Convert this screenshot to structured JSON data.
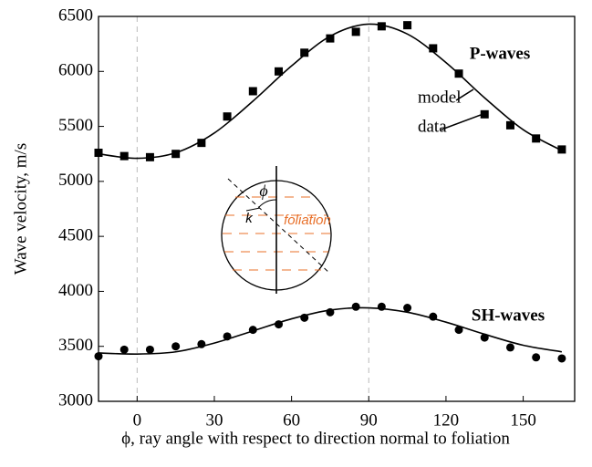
{
  "chart_data": {
    "type": "scatter-line",
    "xlabel": "ϕ, ray angle with respect to direction normal to foliation",
    "ylabel": "Wave velocity, m/s",
    "xlim": [
      -15,
      170
    ],
    "ylim": [
      3000,
      6500
    ],
    "xticks": [
      0,
      30,
      60,
      90,
      120,
      150
    ],
    "yticks": [
      3000,
      3500,
      4000,
      4500,
      5000,
      5500,
      6000,
      6500
    ],
    "vlines": [
      0,
      90
    ],
    "series": [
      {
        "name": "P-waves",
        "marker": "square",
        "color": "#000000",
        "x": [
          -15,
          -5,
          5,
          15,
          25,
          35,
          45,
          55,
          65,
          75,
          85,
          95,
          105,
          115,
          125,
          135,
          145,
          155,
          165
        ],
        "values": [
          5260,
          5230,
          5220,
          5250,
          5350,
          5590,
          5820,
          6000,
          6170,
          6300,
          6360,
          6410,
          6420,
          6210,
          5980,
          5610,
          5510,
          5390,
          5290
        ],
        "model_x": [
          -15,
          0,
          15,
          30,
          45,
          60,
          75,
          90,
          105,
          120,
          135,
          150,
          165
        ],
        "model_values": [
          5250,
          5210,
          5260,
          5440,
          5730,
          6050,
          6320,
          6430,
          6340,
          6080,
          5760,
          5470,
          5280
        ]
      },
      {
        "name": "SH-waves",
        "marker": "circle",
        "color": "#000000",
        "x": [
          -15,
          -5,
          5,
          15,
          25,
          35,
          45,
          55,
          65,
          75,
          85,
          95,
          105,
          115,
          125,
          135,
          145,
          155,
          165
        ],
        "values": [
          3410,
          3470,
          3470,
          3500,
          3520,
          3590,
          3650,
          3700,
          3760,
          3810,
          3860,
          3860,
          3850,
          3770,
          3650,
          3580,
          3490,
          3400,
          3390
        ],
        "model_x": [
          -15,
          0,
          15,
          30,
          45,
          60,
          75,
          90,
          105,
          120,
          135,
          150,
          165
        ],
        "model_values": [
          3440,
          3430,
          3450,
          3530,
          3640,
          3750,
          3830,
          3850,
          3810,
          3720,
          3610,
          3510,
          3450
        ]
      }
    ],
    "annotations": {
      "model": "model",
      "data": "data"
    },
    "inset": {
      "angle": "ϕ",
      "vector": "k",
      "foliation": "foliation"
    }
  }
}
